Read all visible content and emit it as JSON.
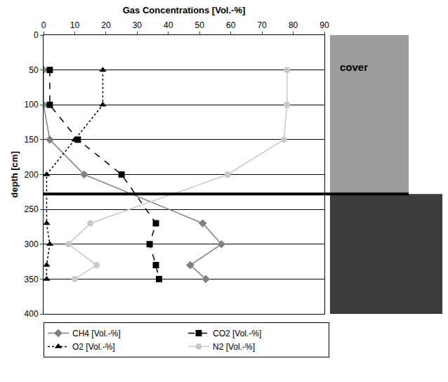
{
  "chart_data": {
    "type": "line",
    "x_label": "Gas Concentrations [Vol.-%]",
    "y_label": "depth [cm]",
    "y": [
      50,
      100,
      150,
      200,
      270,
      300,
      330,
      350
    ],
    "series": [
      {
        "name": "CH4 [Vol.-%]",
        "color": "#808080",
        "marker": "diamond",
        "line_style": "solid",
        "values": [
          0,
          0,
          2,
          13,
          51,
          57,
          47,
          52
        ]
      },
      {
        "name": "CO2 [Vol.-%]",
        "color": "#000000",
        "marker": "square",
        "line_style": "dash",
        "values": [
          2,
          2,
          11,
          25,
          36,
          34,
          36,
          37
        ]
      },
      {
        "name": "O2 [Vol.-%]",
        "color": "#000000",
        "marker": "triangle",
        "line_style": "dot",
        "values": [
          19,
          19,
          10,
          1,
          1,
          2,
          1,
          1
        ]
      },
      {
        "name": "N2 [Vol.-%]",
        "color": "#c8c8c8",
        "marker": "circle",
        "line_style": "solid",
        "values": [
          78,
          78,
          77,
          59,
          15,
          8,
          17,
          10
        ]
      }
    ],
    "xlim": [
      0,
      90
    ],
    "xticks": [
      0,
      10,
      20,
      30,
      40,
      50,
      60,
      70,
      80,
      90
    ],
    "ylim": [
      0,
      400
    ],
    "yticks": [
      0,
      50,
      100,
      150,
      200,
      250,
      300,
      350,
      400
    ],
    "grid": true,
    "legend": "bottom",
    "layers": [
      {
        "label": "cover",
        "top": 0,
        "bottom": 228
      },
      {
        "top": 228,
        "bottom": 400
      }
    ]
  }
}
